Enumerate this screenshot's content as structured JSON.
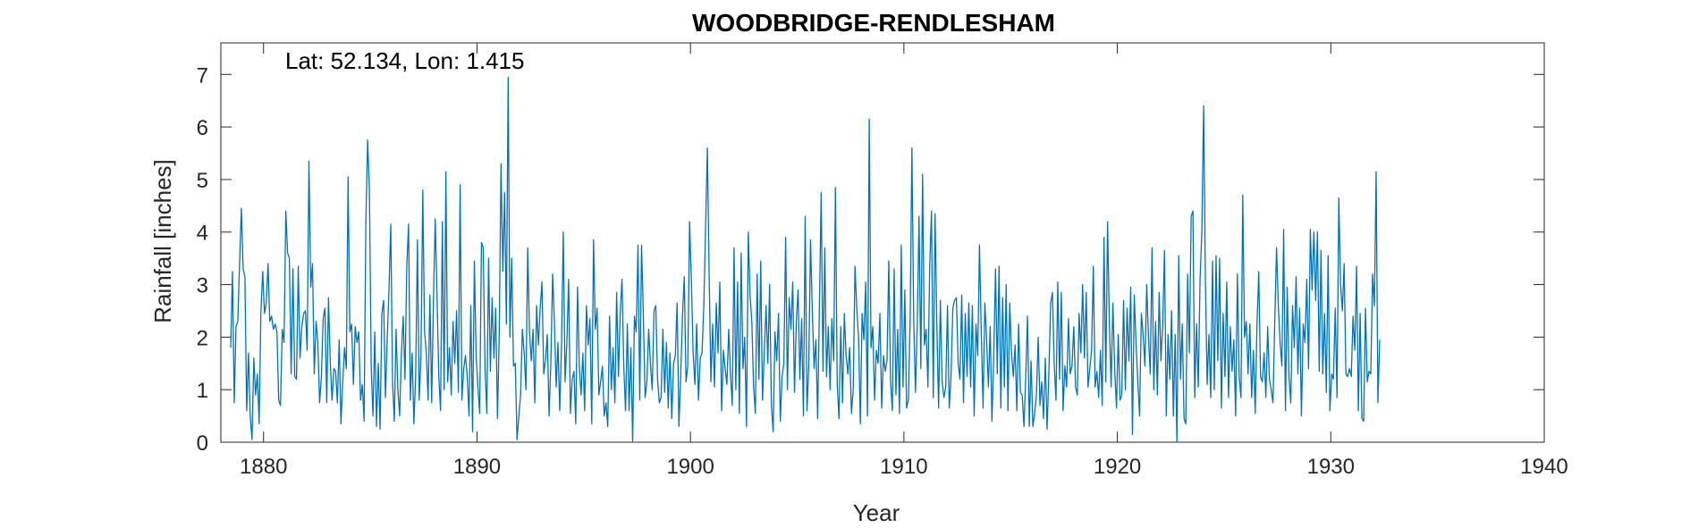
{
  "chart_data": {
    "type": "line",
    "title": "WOODBRIDGE-RENDLESHAM",
    "annotation": "Lat: 52.134, Lon: 1.415",
    "xlabel": "Year",
    "ylabel": "Rainfall [inches]",
    "xlim": [
      1878,
      1940
    ],
    "ylim": [
      0,
      7.6
    ],
    "xticks": [
      1880,
      1890,
      1900,
      1910,
      1920,
      1930,
      1940
    ],
    "yticks": [
      0,
      1,
      2,
      3,
      4,
      5,
      6,
      7
    ],
    "grid": false,
    "series": [
      {
        "color": "#0072BD",
        "x_start": 1878.46,
        "x_step": 0.08333,
        "values": [
          1.8,
          3.25,
          0.75,
          2.2,
          2.3,
          3.4,
          4.45,
          3.3,
          3.15,
          0.6,
          1.7,
          0.5,
          0.05,
          1.6,
          0.9,
          1.3,
          0.35,
          2.5,
          3.25,
          2.45,
          2.65,
          3.4,
          2.3,
          2.4,
          2.15,
          2.25,
          2.1,
          0.8,
          0.7,
          2.15,
          1.9,
          4.4,
          3.6,
          3.5,
          1.3,
          3.3,
          1.25,
          1.2,
          3.35,
          1.6,
          2.2,
          2.45,
          2.5,
          1.75,
          5.35,
          2.95,
          3.4,
          1.3,
          2.3,
          1.9,
          0.75,
          1.25,
          2.35,
          2.55,
          0.75,
          2.75,
          1.5,
          0.8,
          1.4,
          1.35,
          0.75,
          1.95,
          0.35,
          1.15,
          1.8,
          1.4,
          5.05,
          2.1,
          2.25,
          1.1,
          2.2,
          1.9,
          2.1,
          0.8,
          1.1,
          0.4,
          4.2,
          5.75,
          4.8,
          1.45,
          0.5,
          2.1,
          0.3,
          1.5,
          0.25,
          2.45,
          2.7,
          0.85,
          1.95,
          2.9,
          4.15,
          1.15,
          0.4,
          2.15,
          1.0,
          0.5,
          1.7,
          2.4,
          1.2,
          3.35,
          4.15,
          0.8,
          1.7,
          0.35,
          1.25,
          3.85,
          0.8,
          1.65,
          4.8,
          2.1,
          1.7,
          0.8,
          2.8,
          0.75,
          2.7,
          4.25,
          2.8,
          1.25,
          0.6,
          4.2,
          1.0,
          5.15,
          1.15,
          1.8,
          0.9,
          2.3,
          1.5,
          2.5,
          0.95,
          4.9,
          0.8,
          1.4,
          1.65,
          1.25,
          0.5,
          2.6,
          0.2,
          3.45,
          1.65,
          1.05,
          0.55,
          3.8,
          3.7,
          1.4,
          0.55,
          3.5,
          1.35,
          2.75,
          1.6,
          2.55,
          0.45,
          2.1,
          5.3,
          3.25,
          4.75,
          2.25,
          6.95,
          2.0,
          3.5,
          1.45,
          1.5,
          0.05,
          0.5,
          0.9,
          2.15,
          1.7,
          1.0,
          3.7,
          2.1,
          1.55,
          2.15,
          0.75,
          2.6,
          1.85,
          2.55,
          3.05,
          1.3,
          1.55,
          2.05,
          0.5,
          1.5,
          3.2,
          2.3,
          1.05,
          1.9,
          0.6,
          1.85,
          4.0,
          1.15,
          1.9,
          3.1,
          0.55,
          1.2,
          1.35,
          0.35,
          2.95,
          1.45,
          0.9,
          1.7,
          0.6,
          2.6,
          1.85,
          2.35,
          0.35,
          3.85,
          2.15,
          2.55,
          0.9,
          1.15,
          1.45,
          0.5,
          0.75,
          0.3,
          2.4,
          1.0,
          1.8,
          0.75,
          2.85,
          1.25,
          2.45,
          3.1,
          1.45,
          0.6,
          2.25,
          0.6,
          1.8,
          0.0,
          2.4,
          2.1,
          3.75,
          0.8,
          3.75,
          2.45,
          0.85,
          1.15,
          2.15,
          1.5,
          1.0,
          2.5,
          2.6,
          1.2,
          0.75,
          0.85,
          2.15,
          0.95,
          1.9,
          0.65,
          1.7,
          0.45,
          1.5,
          1.65,
          2.65,
          0.3,
          1.25,
          2.4,
          3.15,
          1.15,
          1.45,
          4.2,
          3.1,
          1.7,
          1.1,
          2.25,
          0.8,
          1.6,
          1.7,
          2.6,
          4.1,
          5.6,
          3.2,
          1.15,
          2.25,
          1.05,
          2.65,
          1.7,
          3.05,
          0.6,
          1.75,
          1.4,
          1.1,
          2.15,
          1.3,
          0.7,
          3.7,
          1.0,
          3.05,
          0.55,
          3.6,
          1.4,
          2.0,
          0.3,
          4.0,
          2.8,
          2.3,
          1.05,
          0.55,
          3.2,
          1.2,
          3.45,
          0.8,
          1.7,
          2.6,
          1.5,
          3.0,
          0.7,
          0.2,
          2.1,
          1.55,
          2.45,
          0.4,
          1.25,
          1.5,
          3.9,
          1.0,
          2.75,
          2.15,
          3.05,
          0.95,
          2.3,
          2.9,
          1.2,
          2.35,
          0.5,
          4.3,
          0.6,
          1.45,
          3.85,
          2.5,
          1.4,
          1.95,
          0.45,
          2.6,
          4.75,
          1.35,
          3.7,
          1.25,
          2.2,
          1.0,
          2.35,
          1.55,
          4.85,
          1.1,
          0.45,
          2.2,
          0.75,
          2.45,
          1.65,
          1.3,
          1.8,
          0.55,
          1.0,
          3.35,
          2.55,
          2.0,
          0.35,
          2.45,
          1.95,
          3.05,
          0.5,
          6.15,
          1.8,
          2.2,
          0.8,
          1.75,
          1.5,
          2.45,
          0.65,
          1.65,
          1.35,
          1.55,
          3.45,
          1.15,
          0.6,
          3.3,
          0.9,
          2.15,
          0.55,
          3.75,
          1.05,
          2.9,
          0.65,
          0.8,
          2.3,
          5.6,
          2.35,
          0.95,
          2.25,
          4.3,
          1.4,
          5.1,
          1.85,
          2.15,
          1.05,
          3.35,
          4.4,
          0.85,
          4.35,
          2.25,
          0.65,
          2.7,
          1.15,
          0.85,
          1.05,
          2.6,
          0.65,
          1.25,
          2.55,
          2.7,
          2.75,
          1.5,
          1.2,
          2.8,
          0.75,
          2.45,
          1.25,
          2.65,
          1.05,
          2.6,
          0.5,
          2.25,
          1.65,
          3.75,
          2.1,
          0.65,
          2.65,
          1.95,
          1.05,
          2.2,
          0.4,
          1.6,
          3.3,
          1.3,
          3.35,
          0.65,
          2.75,
          1.05,
          3.0,
          0.6,
          2.65,
          1.7,
          1.25,
          1.85,
          0.6,
          2.25,
          0.95,
          0.9,
          0.3,
          1.25,
          2.4,
          0.3,
          1.55,
          0.3,
          0.55,
          0.9,
          2.0,
          0.7,
          1.15,
          0.45,
          1.6,
          0.25,
          1.3,
          2.65,
          2.85,
          1.5,
          0.8,
          3.05,
          1.2,
          2.85,
          0.6,
          1.45,
          1.05,
          2.35,
          1.3,
          1.45,
          2.2,
          1.05,
          0.9,
          2.45,
          1.7,
          3.0,
          1.6,
          2.85,
          1.05,
          1.4,
          1.75,
          3.35,
          1.05,
          1.35,
          0.85,
          1.75,
          0.7,
          3.9,
          1.15,
          4.2,
          2.3,
          1.05,
          2.65,
          1.4,
          0.65,
          2.05,
          0.8,
          0.9,
          2.7,
          1.0,
          2.55,
          1.55,
          2.95,
          0.15,
          2.8,
          1.9,
          1.15,
          0.5,
          2.45,
          2.05,
          1.45,
          3.0,
          2.0,
          1.3,
          3.7,
          1.0,
          2.3,
          0.9,
          2.85,
          1.55,
          2.25,
          3.65,
          0.5,
          2.05,
          1.2,
          2.5,
          0.5,
          2.05,
          0.0,
          3.55,
          1.2,
          2.25,
          0.45,
          0.35,
          3.2,
          1.7,
          4.3,
          4.4,
          0.85,
          2.25,
          1.05,
          3.1,
          4.0,
          6.4,
          3.1,
          1.1,
          2.05,
          0.85,
          3.45,
          1.0,
          3.55,
          1.55,
          3.5,
          0.65,
          2.45,
          1.25,
          3.05,
          0.85,
          2.2,
          1.35,
          1.95,
          0.5,
          3.2,
          1.25,
          0.85,
          4.7,
          2.0,
          2.3,
          1.3,
          2.25,
          0.85,
          1.75,
          0.55,
          2.25,
          3.25,
          1.25,
          1.15,
          1.7,
          0.85,
          2.2,
          1.2,
          1.0,
          0.75,
          2.3,
          3.7,
          2.6,
          1.9,
          1.45,
          4.05,
          0.6,
          2.95,
          1.25,
          0.75,
          2.6,
          1.8,
          3.15,
          1.3,
          2.55,
          0.5,
          2.25,
          1.9,
          3.1,
          1.4,
          4.05,
          2.9,
          4.0,
          2.7,
          4.0,
          1.35,
          3.65,
          1.3,
          2.45,
          0.95,
          3.55,
          0.6,
          1.3,
          1.2,
          2.55,
          0.85,
          4.65,
          3.0,
          2.5,
          3.4,
          1.3,
          1.25,
          1.4,
          1.25,
          2.4,
          1.75,
          3.35,
          0.6,
          2.45,
          0.45,
          0.4,
          2.55,
          1.15,
          1.35,
          1.3,
          3.2,
          2.6,
          5.15,
          0.75,
          1.95
        ]
      }
    ]
  }
}
